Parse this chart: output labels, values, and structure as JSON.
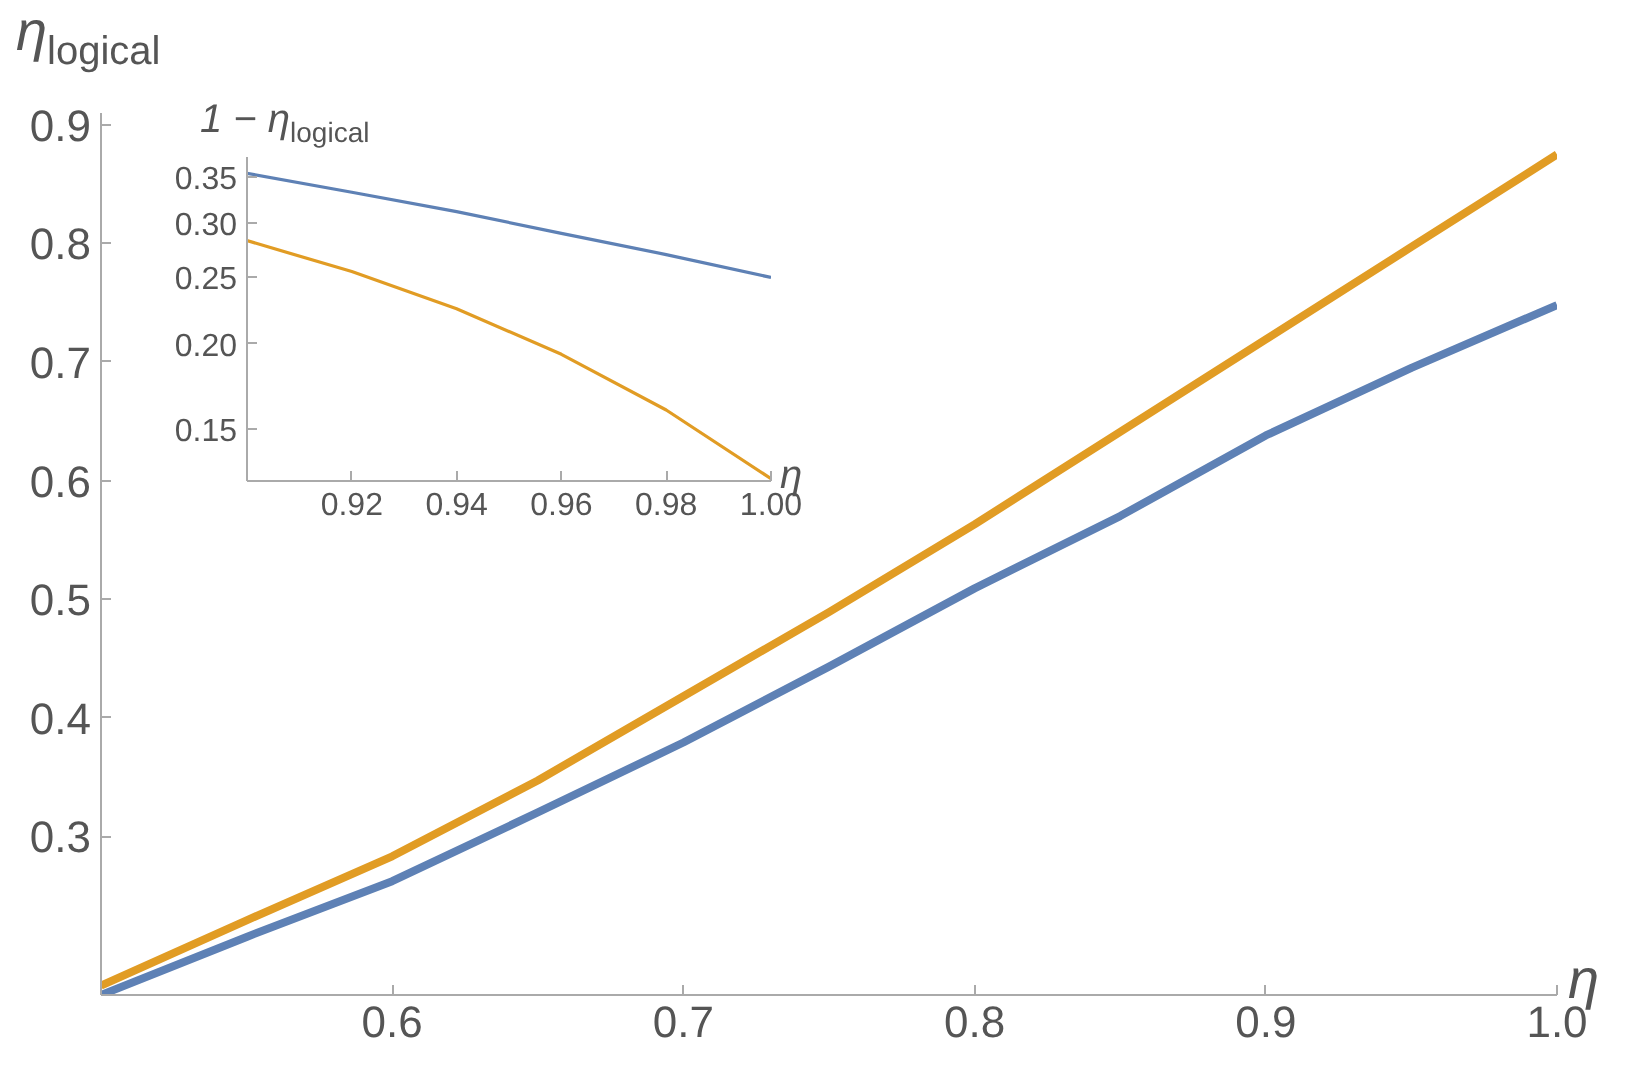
{
  "chart_data": [
    {
      "type": "line",
      "xlabel": "η",
      "ylabel": "η$_{logical}$",
      "x": [
        0.5,
        0.55,
        0.6,
        0.65,
        0.7,
        0.75,
        0.8,
        0.85,
        0.9,
        0.95,
        1.0
      ],
      "xlim": [
        0.5,
        1.0
      ],
      "ylim": [
        0.166,
        0.91
      ],
      "xticks": [
        0.6,
        0.7,
        0.8,
        0.9,
        {
          "value": 1.0,
          "label": "1.0"
        }
      ],
      "yticks": [
        0.3,
        0.4,
        0.5,
        0.6,
        0.7,
        0.8,
        0.9
      ],
      "grid": false,
      "series": [
        {
          "color": "#5e81b5",
          "values": [
            0.166,
            0.215,
            0.262,
            0.32,
            0.379,
            0.443,
            0.509,
            0.57,
            0.638,
            0.695,
            0.748
          ]
        },
        {
          "color": "#e19c24",
          "values": [
            0.174,
            0.229,
            0.283,
            0.347,
            0.418,
            0.489,
            0.563,
            0.641,
            0.719,
            0.797,
            0.875
          ]
        }
      ]
    },
    {
      "type": "line",
      "xlabel": "η",
      "ylabel": "1 − η$_{logical}$",
      "log": "y",
      "x": [
        0.9,
        0.92,
        0.94,
        0.96,
        0.98,
        1.0
      ],
      "xlim": [
        0.9,
        1.0
      ],
      "ylim": [
        0.126,
        0.375
      ],
      "xticks": [
        0.92,
        0.94,
        0.96,
        0.98,
        {
          "value": 1.0,
          "label": "1.00"
        }
      ],
      "yticks": [
        0.15,
        {
          "value": 0.2,
          "label": "0.20"
        },
        0.25,
        {
          "value": 0.3,
          "label": "0.30"
        },
        0.35
      ],
      "grid": false,
      "series": [
        {
          "color": "#5e81b5",
          "values": [
            0.355,
            0.333,
            0.312,
            0.29,
            0.27,
            0.25
          ]
        },
        {
          "color": "#e19c24",
          "values": [
            0.283,
            0.255,
            0.225,
            0.193,
            0.16,
            0.127
          ]
        }
      ]
    }
  ]
}
